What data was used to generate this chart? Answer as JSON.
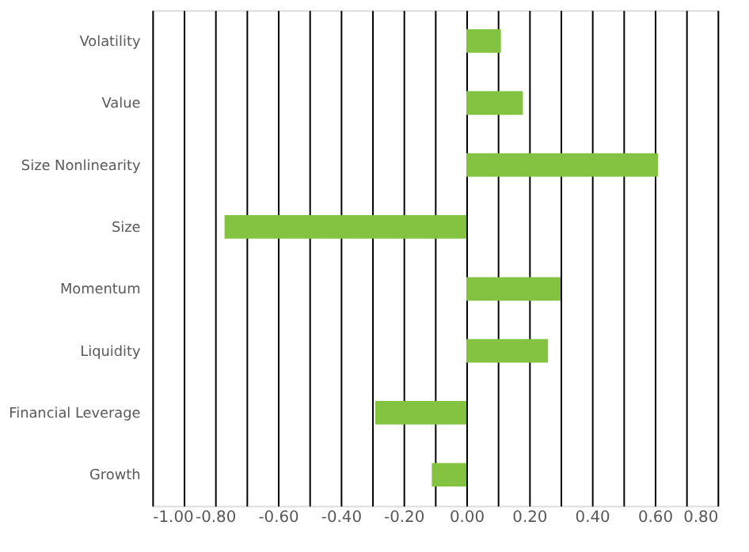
{
  "chart_data": {
    "type": "bar",
    "orientation": "horizontal",
    "categories": [
      "Volatility",
      "Value",
      "Size Nonlinearity",
      "Size",
      "Momentum",
      "Liquidity",
      "Financial Leverage",
      "Growth"
    ],
    "values": [
      0.11,
      0.18,
      0.61,
      -0.77,
      0.3,
      0.26,
      -0.29,
      -0.11
    ],
    "color": "#84c341",
    "xlim": [
      -1.0,
      0.8
    ],
    "xticks": [
      {
        "value": -1.0,
        "label": "-1.00"
      },
      {
        "value": -0.9,
        "label": null
      },
      {
        "value": -0.8,
        "label": "-0.80"
      },
      {
        "value": -0.7,
        "label": null
      },
      {
        "value": -0.6,
        "label": "-0.60"
      },
      {
        "value": -0.5,
        "label": null
      },
      {
        "value": -0.4,
        "label": "-0.40"
      },
      {
        "value": -0.3,
        "label": null
      },
      {
        "value": -0.2,
        "label": "-0.20"
      },
      {
        "value": -0.1,
        "label": null
      },
      {
        "value": 0.0,
        "label": "0.00"
      },
      {
        "value": 0.1,
        "label": null
      },
      {
        "value": 0.2,
        "label": "0.20"
      },
      {
        "value": 0.3,
        "label": null
      },
      {
        "value": 0.4,
        "label": "0.40"
      },
      {
        "value": 0.5,
        "label": null
      },
      {
        "value": 0.6,
        "label": "0.60"
      },
      {
        "value": 0.7,
        "label": null
      },
      {
        "value": 0.8,
        "label": "0.80"
      }
    ],
    "grid": "x"
  }
}
